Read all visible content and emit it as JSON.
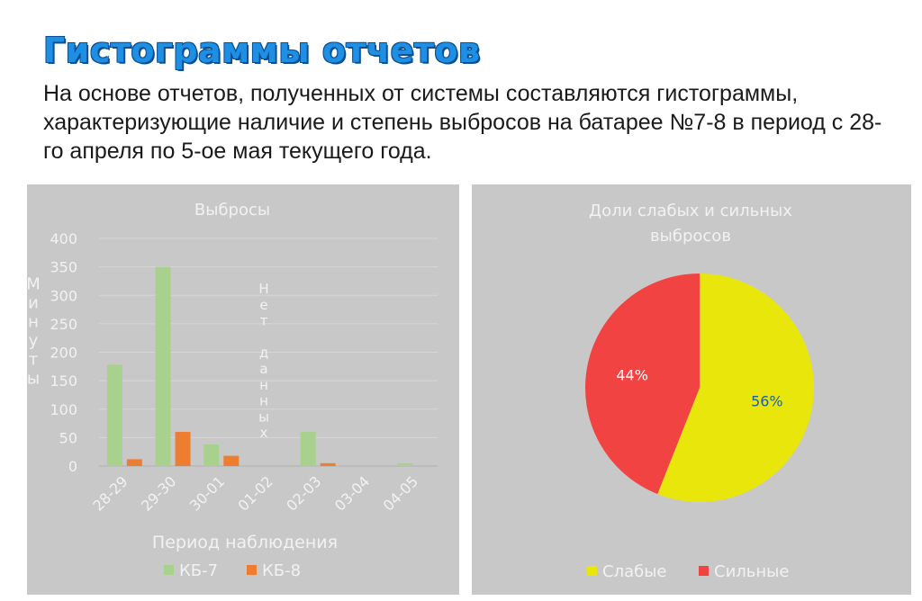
{
  "slide": {
    "title": "Гистограммы отчетов",
    "body": "На основе отчетов, полученных от системы составляются гистограммы, характеризующие наличие и степень выбросов на батарее №7-8 в период с 28-го апреля по 5-ое мая текущего года."
  },
  "colors": {
    "series_kb7": "#a9d18e",
    "series_kb8": "#ed7d31",
    "pie_weak": "#e8e60a",
    "pie_strong": "#f24343",
    "panel_bg": "#c8c8c8",
    "title_blue": "#1e8fe3"
  },
  "chart_data": [
    {
      "type": "bar",
      "title": "Выбросы",
      "xlabel": "Период наблюдения",
      "ylabel": "Минуты",
      "ylim": [
        0,
        400
      ],
      "yticks": [
        "0",
        "50",
        "100",
        "150",
        "200",
        "250",
        "300",
        "350",
        "400"
      ],
      "categories": [
        "28-29",
        "29-30",
        "30-01",
        "01-02",
        "02-03",
        "03-04",
        "04-05"
      ],
      "series": [
        {
          "name": "КБ-7",
          "values": [
            178,
            350,
            38,
            0,
            60,
            0,
            5
          ]
        },
        {
          "name": "КБ-8",
          "values": [
            12,
            60,
            18,
            0,
            5,
            0,
            0
          ]
        }
      ],
      "annotation": "Нет данных",
      "grid": true,
      "legend": "bottom"
    },
    {
      "type": "pie",
      "title": "Доли слабых и сильных выбросов",
      "labels": [
        "Слабые",
        "Сильные"
      ],
      "values": [
        56,
        44
      ],
      "data_labels": [
        "56%",
        "44%"
      ],
      "legend": "bottom"
    }
  ]
}
